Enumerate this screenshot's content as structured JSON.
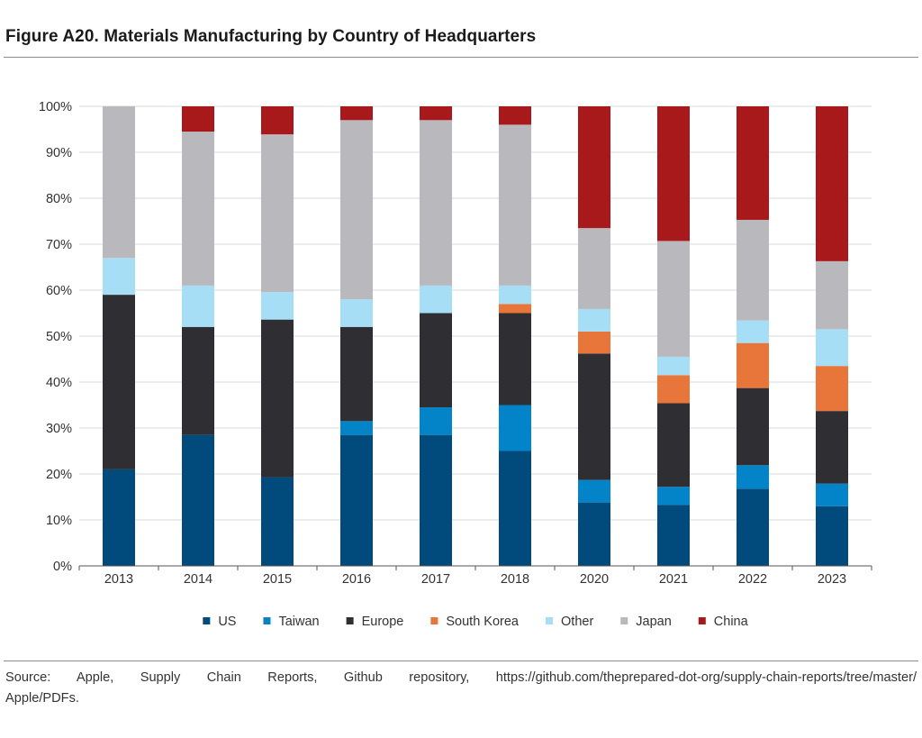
{
  "title": "Figure A20. Materials Manufacturing by Country of Headquarters",
  "source_line1": "Source: Apple, Supply Chain Reports, Github repository, https://github.com/theprepared-dot-org/supply-chain-reports/tree/master/",
  "source_line2": "Apple/PDFs.",
  "chart_data": {
    "type": "bar",
    "stacked": true,
    "percent": true,
    "categories": [
      "2013",
      "2014",
      "2015",
      "2016",
      "2017",
      "2018",
      "2020",
      "2021",
      "2022",
      "2023"
    ],
    "y_ticks": [
      "0%",
      "10%",
      "20%",
      "30%",
      "40%",
      "50%",
      "60%",
      "70%",
      "80%",
      "90%",
      "100%"
    ],
    "ylim": [
      0,
      100
    ],
    "grid": true,
    "legend_position": "bottom",
    "series": [
      {
        "name": "US",
        "color": "#004a7c",
        "values": [
          21,
          28.5,
          19.3,
          28.5,
          28.5,
          25,
          13.8,
          13.3,
          16.8,
          13
        ]
      },
      {
        "name": "Taiwan",
        "color": "#0384c9",
        "values": [
          0,
          0,
          0,
          3,
          6,
          10,
          4.9,
          3.9,
          5.1,
          4.9
        ]
      },
      {
        "name": "Europe",
        "color": "#2e2e33",
        "values": [
          38,
          23.5,
          34.3,
          20.5,
          20.5,
          20,
          27.5,
          18.2,
          16.8,
          15.8
        ]
      },
      {
        "name": "South Korea",
        "color": "#e8763a",
        "values": [
          0,
          0,
          0,
          0,
          0,
          2,
          4.8,
          6.1,
          9.8,
          9.8
        ]
      },
      {
        "name": "Other",
        "color": "#a6def5",
        "values": [
          8,
          9,
          6,
          6,
          6,
          4,
          4.9,
          4,
          4.9,
          8
        ]
      },
      {
        "name": "Japan",
        "color": "#b9b8bd",
        "values": [
          33,
          33.5,
          34.3,
          39,
          36,
          35,
          17.6,
          25.2,
          21.9,
          14.8
        ]
      },
      {
        "name": "China",
        "color": "#a8191c",
        "values": [
          0,
          5.5,
          6.1,
          3,
          3,
          4,
          26.5,
          29.3,
          24.7,
          33.7
        ]
      }
    ]
  }
}
